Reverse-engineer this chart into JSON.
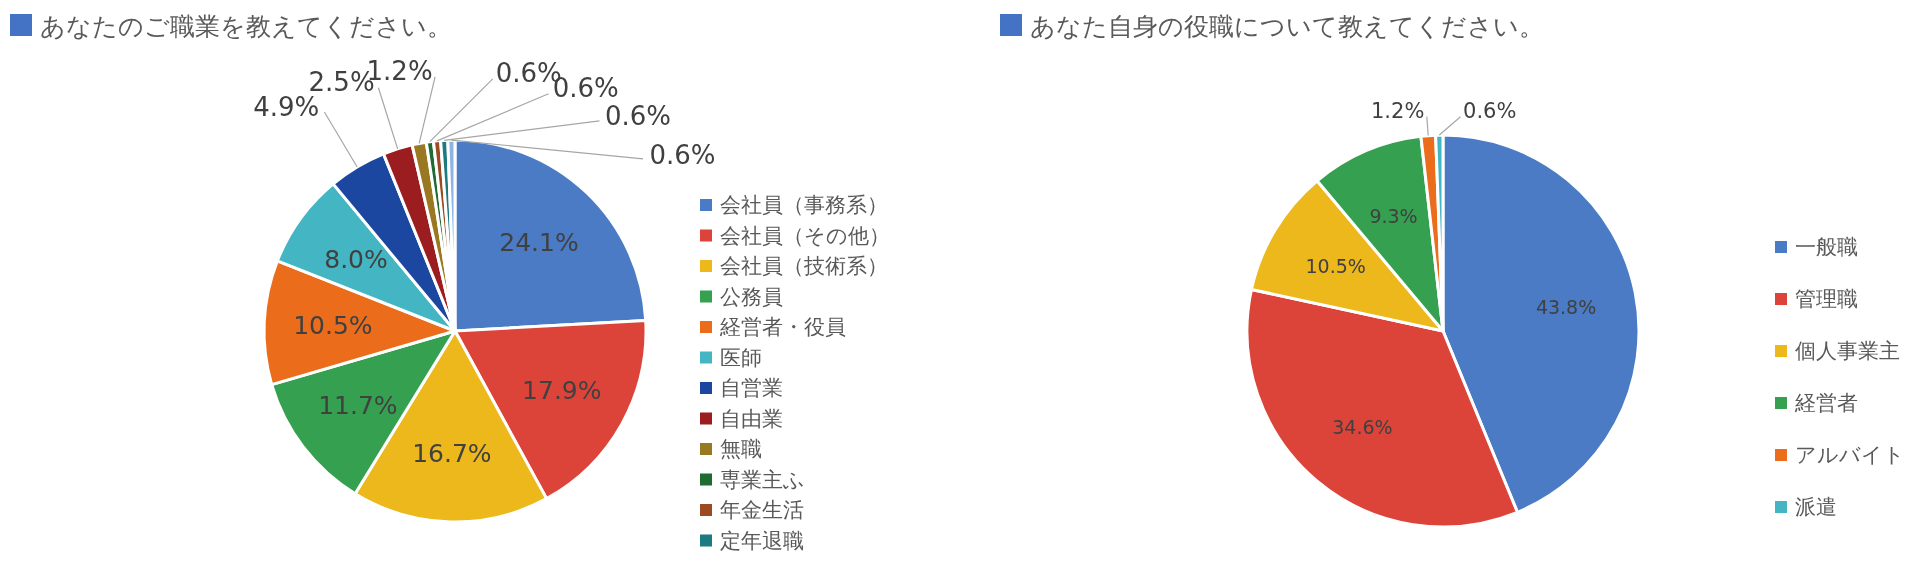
{
  "chart_data": [
    {
      "type": "pie",
      "title": "あなたのご職業を教えてください。",
      "legend": "right",
      "categories": [
        "会社員（事務系）",
        "会社員（その他）",
        "会社員（技術系）",
        "公務員",
        "経営者・役員",
        "医師",
        "自営業",
        "自由業",
        "無職",
        "専業主ふ",
        "年金生活",
        "定年退職",
        null
      ],
      "values": [
        24.1,
        17.9,
        16.7,
        11.7,
        10.5,
        8.0,
        4.9,
        2.5,
        1.2,
        0.6,
        0.6,
        0.6,
        0.6
      ],
      "value_labels": [
        "24.1%",
        "17.9%",
        "16.7%",
        "11.7%",
        "10.5%",
        "8.0%",
        "4.9%",
        "2.5%",
        "1.2%",
        "0.6%",
        "0.6%",
        "0.6%",
        "0.6%"
      ],
      "colors": [
        "#4a7bc4",
        "#dc4439",
        "#edb81c",
        "#35a04f",
        "#eb6d1b",
        "#44b5c3",
        "#1b47a0",
        "#9b1d20",
        "#9a7721",
        "#1e6b34",
        "#9c4a22",
        "#1c7b80",
        "#8fb4e3"
      ]
    },
    {
      "type": "pie",
      "title": "あなた自身の役職について教えてください。",
      "legend": "right",
      "categories": [
        "一般職",
        "管理職",
        "個人事業主",
        "経営者",
        "アルバイト",
        "派遣"
      ],
      "values": [
        43.8,
        34.6,
        10.5,
        9.3,
        1.2,
        0.6
      ],
      "value_labels": [
        "43.8%",
        "34.6%",
        "10.5%",
        "9.3%",
        "1.2%",
        "0.6%"
      ],
      "colors": [
        "#4a7bc4",
        "#dc4439",
        "#edb81c",
        "#35a04f",
        "#eb6d1b",
        "#44b5c3"
      ]
    }
  ]
}
